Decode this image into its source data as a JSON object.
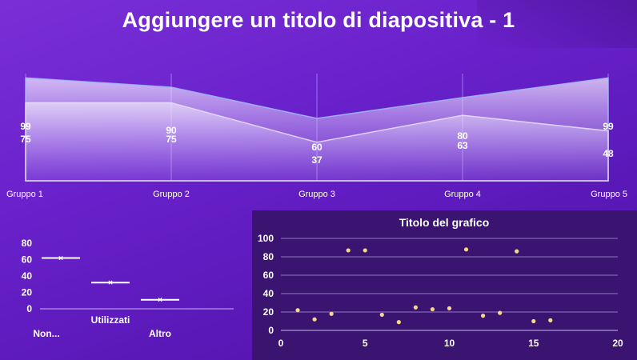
{
  "slide": {
    "title": "Aggiungere un titolo di diapositiva - 1"
  },
  "colors": {
    "background": "#6a22cc",
    "area_fill": "#e8d8ff",
    "area_line": "#9b7cf0",
    "marker": "#f5d98a",
    "scatter_panel": "#3a1470"
  },
  "chart_data": [
    {
      "type": "area",
      "categories": [
        "Gruppo 1",
        "Gruppo 2",
        "Gruppo 3",
        "Gruppo 4",
        "Gruppo 5"
      ],
      "series": [
        {
          "values": [
            99,
            90,
            60,
            80,
            99
          ]
        },
        {
          "values": [
            75,
            75,
            37,
            63,
            48
          ]
        }
      ],
      "data_labels": true,
      "ylim": [
        0,
        100
      ]
    },
    {
      "type": "box",
      "categories": [
        "Non...",
        "Utilizzati",
        "Altro"
      ],
      "values": [
        62,
        32,
        11
      ],
      "yticks": [
        "0",
        "20",
        "40",
        "60",
        "80"
      ],
      "ylim": [
        0,
        80
      ]
    },
    {
      "type": "scatter",
      "title": "Titolo del grafico",
      "points": [
        [
          1,
          22
        ],
        [
          2,
          12
        ],
        [
          3,
          18
        ],
        [
          4,
          87
        ],
        [
          5,
          87
        ],
        [
          6,
          17
        ],
        [
          7,
          9
        ],
        [
          8,
          25
        ],
        [
          9,
          23
        ],
        [
          10,
          24
        ],
        [
          11,
          88
        ],
        [
          12,
          16
        ],
        [
          13,
          19
        ],
        [
          14,
          86
        ],
        [
          15,
          10
        ],
        [
          16,
          11
        ]
      ],
      "xticks": [
        "0",
        "5",
        "10",
        "15",
        "20"
      ],
      "yticks": [
        "0",
        "20",
        "40",
        "60",
        "80",
        "100"
      ],
      "xlim": [
        0,
        20
      ],
      "ylim": [
        0,
        100
      ],
      "grid": true
    }
  ]
}
